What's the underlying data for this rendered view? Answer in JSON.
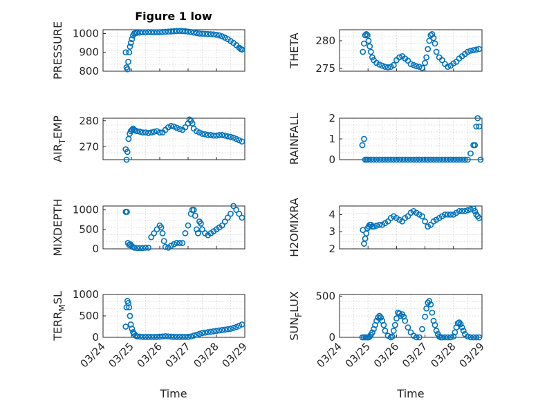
{
  "chart_data": {
    "type": "scatter",
    "title": "Figure 1 low",
    "xlabel": "Time",
    "x_tick_labels": [
      "03/24",
      "03/25",
      "03/26",
      "03/27",
      "03/28",
      "03/29"
    ],
    "xlim": [
      0,
      5
    ],
    "marker_color": "#0072BD",
    "grid": "on (dotted, both axes)",
    "subplots": [
      {
        "ylabel": "PRESSURE",
        "ylim": [
          800,
          1020
        ],
        "yticks": [
          800,
          900,
          1000
        ],
        "x": [
          0.8,
          0.83,
          0.86,
          0.89,
          0.92,
          0.95,
          0.98,
          1.02,
          1.06,
          1.1,
          1.15,
          1.2,
          1.3,
          1.4,
          1.5,
          1.6,
          1.7,
          1.8,
          1.9,
          2.0,
          2.1,
          2.2,
          2.3,
          2.4,
          2.5,
          2.6,
          2.7,
          2.8,
          2.9,
          3.0,
          3.1,
          3.2,
          3.3,
          3.4,
          3.5,
          3.6,
          3.7,
          3.8,
          3.9,
          4.0,
          4.1,
          4.2,
          4.3,
          4.4,
          4.5,
          4.6,
          4.7,
          4.8,
          4.85,
          4.9
        ],
        "y": [
          900,
          820,
          810,
          850,
          900,
          930,
          950,
          970,
          990,
          1000,
          1003,
          1004,
          1005,
          1006,
          1006,
          1007,
          1007,
          1006,
          1006,
          1007,
          1008,
          1009,
          1010,
          1011,
          1012,
          1013,
          1014,
          1013,
          1012,
          1010,
          1008,
          1005,
          1002,
          1000,
          999,
          998,
          997,
          996,
          995,
          993,
          990,
          985,
          978,
          970,
          960,
          950,
          938,
          925,
          918,
          915
        ]
      },
      {
        "ylabel": "THETA",
        "ylim": [
          274.5,
          282
        ],
        "yticks": [
          275,
          280
        ],
        "x": [
          0.82,
          0.86,
          0.9,
          0.94,
          0.98,
          1.02,
          1.06,
          1.1,
          1.15,
          1.2,
          1.3,
          1.4,
          1.5,
          1.6,
          1.7,
          1.8,
          1.9,
          2.0,
          2.1,
          2.2,
          2.3,
          2.4,
          2.5,
          2.6,
          2.7,
          2.8,
          2.9,
          3.0,
          3.05,
          3.1,
          3.15,
          3.2,
          3.25,
          3.3,
          3.35,
          3.4,
          3.5,
          3.6,
          3.7,
          3.8,
          3.9,
          4.0,
          4.1,
          4.2,
          4.3,
          4.4,
          4.5,
          4.6,
          4.7,
          4.8,
          4.9
        ],
        "y": [
          278,
          279.5,
          281,
          281.2,
          281,
          280,
          279,
          278,
          277,
          276.5,
          276,
          275.7,
          275.5,
          275.3,
          275.2,
          275.3,
          275.6,
          276.5,
          277,
          277.2,
          276.8,
          276.4,
          275.8,
          275.6,
          275.4,
          275.3,
          275.1,
          276,
          277,
          278.5,
          280,
          281,
          281.2,
          280.5,
          279.5,
          278,
          277,
          276.5,
          275.8,
          275.3,
          275.5,
          275.9,
          276.2,
          276.8,
          277.2,
          277.6,
          278,
          278.2,
          278.3,
          278.4,
          278.5
        ]
      },
      {
        "ylabel": "AIR_TEMP",
        "ylim": [
          265,
          281
        ],
        "yticks": [
          270,
          280
        ],
        "x": [
          0.8,
          0.83,
          0.86,
          0.9,
          0.94,
          0.98,
          1.02,
          1.06,
          1.1,
          1.15,
          1.2,
          1.3,
          1.4,
          1.5,
          1.6,
          1.7,
          1.8,
          1.9,
          2.0,
          2.1,
          2.2,
          2.3,
          2.4,
          2.5,
          2.6,
          2.7,
          2.8,
          2.9,
          3.0,
          3.05,
          3.1,
          3.15,
          3.2,
          3.3,
          3.4,
          3.5,
          3.6,
          3.7,
          3.8,
          3.9,
          4.0,
          4.1,
          4.2,
          4.3,
          4.4,
          4.5,
          4.6,
          4.7,
          4.8,
          4.9
        ],
        "y": [
          269,
          265,
          268,
          273,
          275,
          276,
          276.5,
          277,
          276.5,
          276.2,
          276,
          275.8,
          275.5,
          275.5,
          275.3,
          275.5,
          275.8,
          276,
          275.5,
          275.5,
          276.5,
          277.5,
          278,
          277.8,
          277.3,
          276.8,
          276.5,
          277.5,
          279,
          280.5,
          280,
          279,
          277,
          276,
          275.5,
          275,
          274.8,
          274.5,
          274.5,
          274.3,
          274.3,
          274.5,
          274.5,
          274.3,
          274,
          273.8,
          273.5,
          273,
          272.5,
          272
        ]
      },
      {
        "ylabel": "RAINFALL",
        "ylim": [
          0,
          2
        ],
        "yticks": [
          0,
          1,
          2
        ],
        "x": [
          0.8,
          0.86,
          0.9,
          0.95,
          1.0,
          1.1,
          1.2,
          1.3,
          1.4,
          1.5,
          1.6,
          1.7,
          1.8,
          1.9,
          2.0,
          2.1,
          2.2,
          2.3,
          2.4,
          2.5,
          2.6,
          2.7,
          2.8,
          2.9,
          3.0,
          3.1,
          3.2,
          3.3,
          3.4,
          3.5,
          3.6,
          3.7,
          3.8,
          3.9,
          4.0,
          4.1,
          4.2,
          4.3,
          4.4,
          4.5,
          4.6,
          4.7,
          4.75,
          4.8,
          4.85,
          4.9,
          4.95
        ],
        "y": [
          0.7,
          1.0,
          0.0,
          0.0,
          0.0,
          0.0,
          0.0,
          0.0,
          0.0,
          0.0,
          0.0,
          0.0,
          0.0,
          0.0,
          0.0,
          0.0,
          0.0,
          0.0,
          0.0,
          0.0,
          0.0,
          0.0,
          0.0,
          0.0,
          0.0,
          0.0,
          0.0,
          0.0,
          0.0,
          0.0,
          0.0,
          0.0,
          0.0,
          0.0,
          0.0,
          0.0,
          0.0,
          0.0,
          0.0,
          0.0,
          0.3,
          0.7,
          0.7,
          1.6,
          2.0,
          1.6,
          0.0
        ]
      },
      {
        "ylabel": "MIXDEPTH",
        "ylim": [
          0,
          1100
        ],
        "yticks": [
          0,
          500,
          1000
        ],
        "x": [
          0.8,
          0.84,
          0.88,
          0.92,
          0.96,
          1.0,
          1.05,
          1.1,
          1.2,
          1.3,
          1.4,
          1.5,
          1.6,
          1.7,
          1.8,
          1.9,
          2.0,
          2.05,
          2.1,
          2.15,
          2.2,
          2.3,
          2.4,
          2.5,
          2.6,
          2.7,
          2.8,
          2.9,
          3.0,
          3.1,
          3.15,
          3.2,
          3.25,
          3.3,
          3.35,
          3.4,
          3.45,
          3.5,
          3.6,
          3.7,
          3.8,
          3.9,
          4.0,
          4.1,
          4.2,
          4.3,
          4.4,
          4.5,
          4.6,
          4.7,
          4.8,
          4.9
        ],
        "y": [
          950,
          950,
          150,
          100,
          120,
          80,
          50,
          30,
          20,
          20,
          20,
          30,
          30,
          300,
          400,
          500,
          600,
          550,
          400,
          200,
          50,
          30,
          80,
          120,
          150,
          150,
          150,
          400,
          600,
          900,
          1000,
          1000,
          850,
          500,
          400,
          700,
          650,
          500,
          400,
          350,
          400,
          450,
          500,
          550,
          600,
          700,
          800,
          900,
          1100,
          1000,
          900,
          800
        ]
      },
      {
        "ylabel": "H2OMIXRA",
        "ylim": [
          2,
          4.5
        ],
        "yticks": [
          2,
          3,
          4
        ],
        "x": [
          0.82,
          0.86,
          0.9,
          0.94,
          0.98,
          1.02,
          1.06,
          1.1,
          1.15,
          1.2,
          1.3,
          1.4,
          1.5,
          1.6,
          1.7,
          1.8,
          1.9,
          2.0,
          2.1,
          2.2,
          2.3,
          2.4,
          2.5,
          2.6,
          2.7,
          2.8,
          2.9,
          3.0,
          3.1,
          3.2,
          3.3,
          3.4,
          3.5,
          3.6,
          3.7,
          3.8,
          3.9,
          4.0,
          4.1,
          4.2,
          4.3,
          4.4,
          4.5,
          4.6,
          4.7,
          4.75,
          4.8,
          4.85,
          4.9
        ],
        "y": [
          3.1,
          2.3,
          2.6,
          2.9,
          3.2,
          3.3,
          3.4,
          3.4,
          3.3,
          3.3,
          3.35,
          3.4,
          3.4,
          3.5,
          3.6,
          3.8,
          3.9,
          3.8,
          3.7,
          3.6,
          3.8,
          3.9,
          4.1,
          4.2,
          4.1,
          4.0,
          3.9,
          3.6,
          3.3,
          3.4,
          3.6,
          3.7,
          3.8,
          3.9,
          4.0,
          4.0,
          4.0,
          4.0,
          4.1,
          4.2,
          4.2,
          4.2,
          4.25,
          4.3,
          4.35,
          4.2,
          4.0,
          3.9,
          3.8
        ]
      },
      {
        "ylabel": "TERR_MSL",
        "ylim": [
          0,
          1000
        ],
        "yticks": [
          0,
          500,
          1000
        ],
        "x": [
          0.8,
          0.83,
          0.86,
          0.89,
          0.92,
          0.95,
          0.98,
          1.02,
          1.06,
          1.1,
          1.15,
          1.2,
          1.3,
          1.4,
          1.5,
          1.6,
          1.7,
          1.8,
          1.9,
          2.0,
          2.1,
          2.2,
          2.3,
          2.4,
          2.5,
          2.6,
          2.7,
          2.8,
          2.9,
          3.0,
          3.1,
          3.2,
          3.3,
          3.4,
          3.5,
          3.6,
          3.7,
          3.8,
          3.9,
          4.0,
          4.1,
          4.2,
          4.3,
          4.4,
          4.5,
          4.6,
          4.7,
          4.8,
          4.9
        ],
        "y": [
          250,
          700,
          850,
          800,
          700,
          500,
          300,
          200,
          120,
          80,
          40,
          20,
          15,
          10,
          10,
          10,
          10,
          10,
          10,
          15,
          20,
          25,
          20,
          15,
          10,
          10,
          10,
          10,
          10,
          10,
          20,
          40,
          60,
          80,
          100,
          110,
          120,
          130,
          140,
          150,
          160,
          170,
          180,
          190,
          200,
          220,
          240,
          270,
          300
        ]
      },
      {
        "ylabel": "SUN_FLUX",
        "ylim": [
          0,
          520
        ],
        "yticks": [
          0,
          500
        ],
        "x": [
          0.8,
          0.86,
          0.92,
          0.98,
          1.02,
          1.06,
          1.1,
          1.15,
          1.2,
          1.25,
          1.3,
          1.35,
          1.4,
          1.45,
          1.5,
          1.55,
          1.6,
          1.7,
          1.8,
          1.85,
          1.9,
          1.95,
          2.0,
          2.05,
          2.1,
          2.15,
          2.2,
          2.25,
          2.3,
          2.4,
          2.5,
          2.6,
          2.7,
          2.8,
          2.9,
          3.0,
          3.05,
          3.1,
          3.15,
          3.2,
          3.25,
          3.3,
          3.35,
          3.4,
          3.45,
          3.5,
          3.55,
          3.6,
          3.7,
          3.8,
          3.9,
          4.0,
          4.05,
          4.1,
          4.15,
          4.2,
          4.25,
          4.3,
          4.35,
          4.4,
          4.5,
          4.6,
          4.7,
          4.8,
          4.9
        ],
        "y": [
          0,
          0,
          0,
          0,
          0,
          10,
          30,
          60,
          100,
          150,
          200,
          240,
          260,
          240,
          200,
          150,
          80,
          20,
          0,
          10,
          80,
          150,
          230,
          300,
          290,
          260,
          280,
          250,
          200,
          120,
          60,
          20,
          0,
          0,
          100,
          250,
          350,
          420,
          440,
          400,
          300,
          200,
          150,
          80,
          40,
          10,
          0,
          0,
          0,
          0,
          0,
          10,
          60,
          120,
          170,
          180,
          160,
          120,
          80,
          40,
          10,
          0,
          0,
          0,
          0
        ]
      }
    ]
  },
  "ylabel_parts": [
    {
      "main": "PRESSURE",
      "sub": "",
      "post": ""
    },
    {
      "main": "THETA",
      "sub": "",
      "post": ""
    },
    {
      "main": "AIR",
      "sub": "T",
      "post": "EMP"
    },
    {
      "main": "RAINFALL",
      "sub": "",
      "post": ""
    },
    {
      "main": "MIXDEPTH",
      "sub": "",
      "post": ""
    },
    {
      "main": "H2OMIXRA",
      "sub": "",
      "post": ""
    },
    {
      "main": "TERR",
      "sub": "M",
      "post": "SL"
    },
    {
      "main": "SUN",
      "sub": "F",
      "post": "LUX"
    }
  ]
}
